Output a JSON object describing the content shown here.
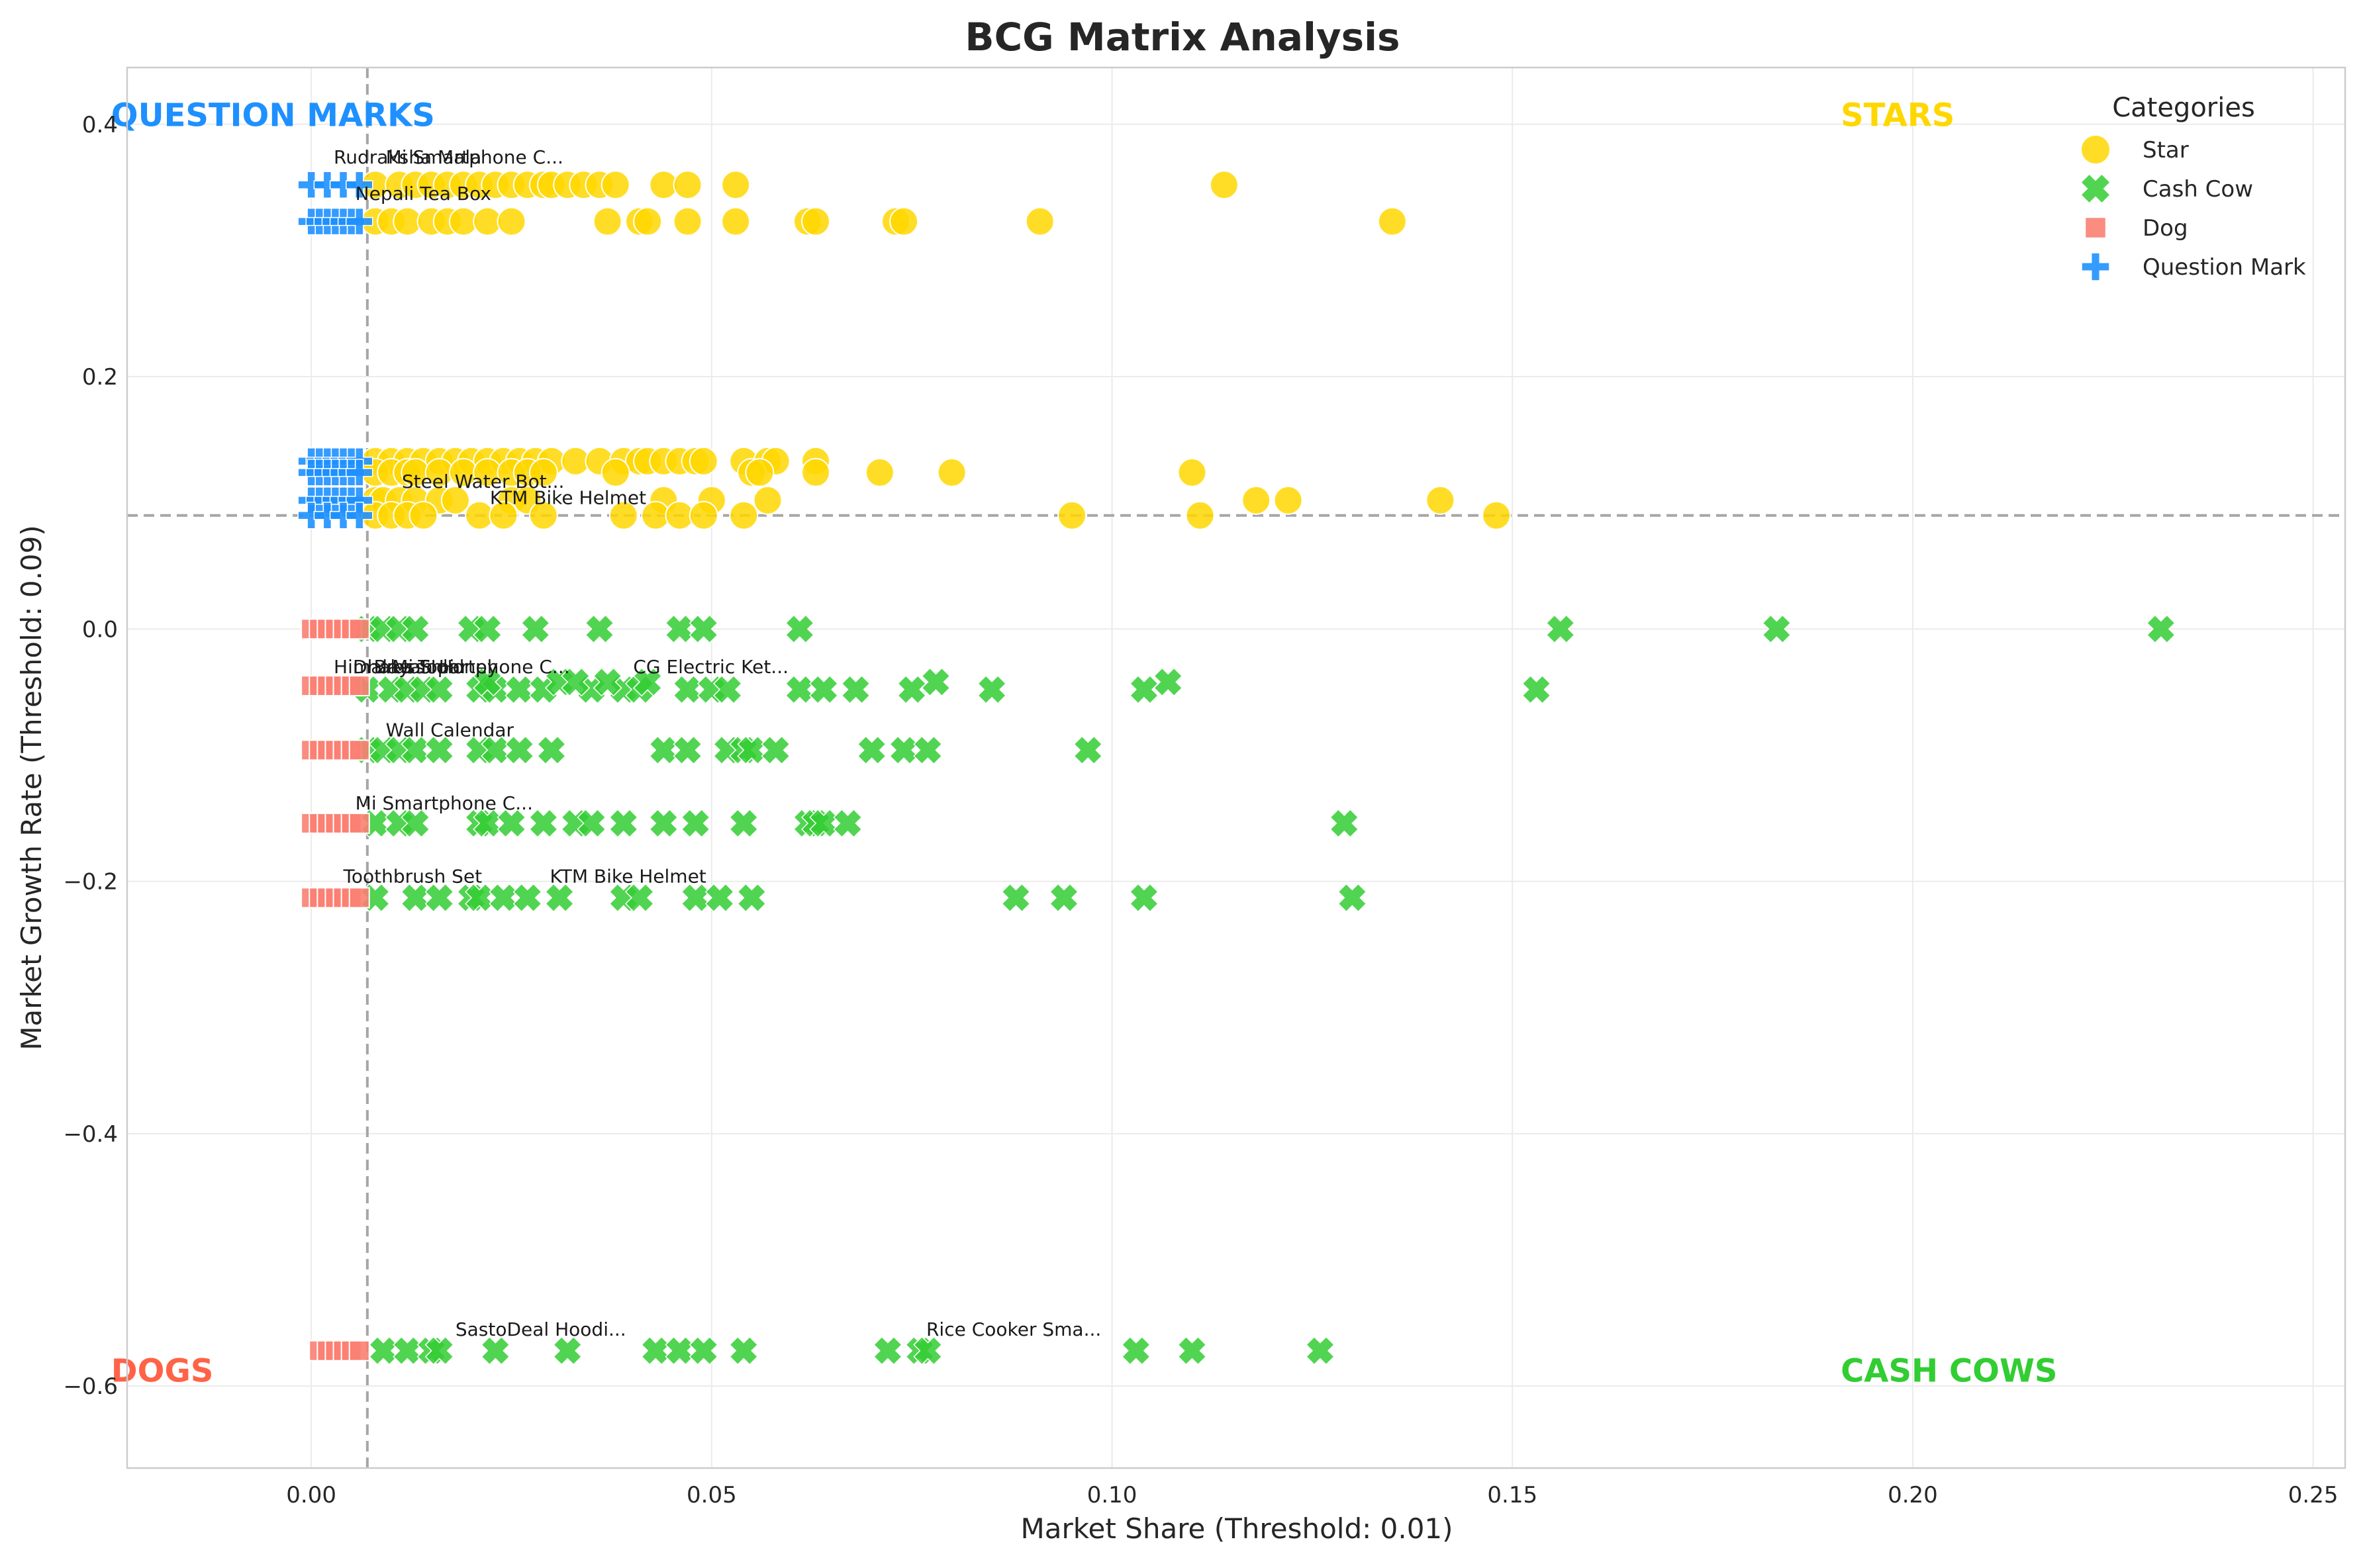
{
  "chart_data": {
    "type": "scatter",
    "title": "BCG Matrix Analysis",
    "xlabel": "Market Share (Threshold: 0.01)",
    "ylabel": "Market Growth Rate (Threshold: 0.09)",
    "xlim": [
      -0.023,
      0.254
    ],
    "ylim": [
      -0.665,
      0.445
    ],
    "x_ticks": [
      0.0,
      0.05,
      0.1,
      0.15,
      0.2,
      0.25
    ],
    "x_tick_labels": [
      "0.00",
      "0.05",
      "0.10",
      "0.15",
      "0.20",
      "0.25"
    ],
    "y_ticks": [
      -0.6,
      -0.4,
      -0.2,
      0.0,
      0.2,
      0.4
    ],
    "y_tick_labels": [
      "−0.6",
      "−0.4",
      "−0.2",
      "0.0",
      "0.2",
      "0.4"
    ],
    "grid": true,
    "thresholds": {
      "x": 0.007,
      "y": 0.09
    },
    "legend": {
      "title": "Categories",
      "placement": "top-right",
      "entries": [
        "Star",
        "Cash Cow",
        "Dog",
        "Question Mark"
      ]
    },
    "quadrant_labels": [
      {
        "text": "QUESTION MARKS",
        "x": -0.025,
        "y": 0.408,
        "color": "#1e90ff"
      },
      {
        "text": "STARS",
        "x": 0.191,
        "y": 0.408,
        "color": "#ffd700"
      },
      {
        "text": "DOGS",
        "x": -0.025,
        "y": -0.587,
        "color": "#ff6347"
      },
      {
        "text": "CASH COWS",
        "x": 0.191,
        "y": -0.587,
        "color": "#32cd32"
      }
    ],
    "series": [
      {
        "name": "Star",
        "marker": "circle",
        "color": "#ffd700",
        "rows": [
          {
            "y": 0.352,
            "x": [
              0.008,
              0.011,
              0.013,
              0.015,
              0.017,
              0.019,
              0.021,
              0.023,
              0.025,
              0.027,
              0.029,
              0.03,
              0.032,
              0.034,
              0.036,
              0.038,
              0.044,
              0.047,
              0.053,
              0.114
            ]
          },
          {
            "y": 0.323,
            "x": [
              0.008,
              0.01,
              0.012,
              0.015,
              0.017,
              0.019,
              0.022,
              0.025,
              0.037,
              0.041,
              0.042,
              0.047,
              0.053,
              0.062,
              0.063,
              0.073,
              0.074,
              0.091,
              0.135
            ]
          },
          {
            "y": 0.133,
            "x": [
              0.008,
              0.01,
              0.012,
              0.014,
              0.016,
              0.018,
              0.02,
              0.022,
              0.024,
              0.026,
              0.028,
              0.03,
              0.033,
              0.036,
              0.039,
              0.041,
              0.042,
              0.044,
              0.046,
              0.048,
              0.049,
              0.054,
              0.057,
              0.058,
              0.063
            ]
          },
          {
            "y": 0.124,
            "x": [
              0.008,
              0.01,
              0.012,
              0.013,
              0.016,
              0.019,
              0.022,
              0.025,
              0.027,
              0.029,
              0.038,
              0.055,
              0.056,
              0.063,
              0.071,
              0.08,
              0.11
            ]
          },
          {
            "y": 0.102,
            "x": [
              0.008,
              0.009,
              0.011,
              0.013,
              0.016,
              0.018,
              0.025,
              0.027,
              0.044,
              0.05,
              0.057,
              0.118,
              0.122,
              0.141
            ]
          },
          {
            "y": 0.09,
            "x": [
              0.008,
              0.01,
              0.012,
              0.014,
              0.021,
              0.024,
              0.029,
              0.039,
              0.043,
              0.046,
              0.049,
              0.054,
              0.095,
              0.111,
              0.148
            ]
          }
        ]
      },
      {
        "name": "Cash Cow",
        "marker": "x",
        "color": "#32cd32",
        "rows": [
          {
            "y": 0.0,
            "x": [
              0.007,
              0.009,
              0.011,
              0.013,
              0.02,
              0.022,
              0.028,
              0.036,
              0.046,
              0.049,
              0.061,
              0.156,
              0.183,
              0.231
            ]
          },
          {
            "y": -0.048,
            "x": [
              0.007,
              0.01,
              0.012,
              0.014,
              0.016,
              0.021,
              0.023,
              0.026,
              0.029,
              0.035,
              0.039,
              0.041,
              0.047,
              0.05,
              0.052,
              0.061,
              0.064,
              0.068,
              0.075,
              0.085,
              0.104,
              0.153
            ]
          },
          {
            "y": -0.042,
            "x": [
              0.022,
              0.031,
              0.033,
              0.037,
              0.042,
              0.078,
              0.107
            ]
          },
          {
            "y": -0.096,
            "x": [
              0.007,
              0.009,
              0.011,
              0.013,
              0.016,
              0.021,
              0.023,
              0.026,
              0.03,
              0.044,
              0.047,
              0.052,
              0.054,
              0.055,
              0.058,
              0.07,
              0.074,
              0.077,
              0.097
            ]
          },
          {
            "y": -0.154,
            "x": [
              0.008,
              0.011,
              0.013,
              0.021,
              0.022,
              0.025,
              0.029,
              0.033,
              0.035,
              0.039,
              0.044,
              0.048,
              0.054,
              0.062,
              0.063,
              0.064,
              0.067,
              0.129
            ]
          },
          {
            "y": -0.213,
            "x": [
              0.008,
              0.013,
              0.016,
              0.02,
              0.021,
              0.024,
              0.027,
              0.031,
              0.039,
              0.041,
              0.048,
              0.051,
              0.055,
              0.088,
              0.094,
              0.104,
              0.13
            ]
          },
          {
            "y": -0.572,
            "x": [
              0.009,
              0.012,
              0.015,
              0.016,
              0.023,
              0.032,
              0.043,
              0.046,
              0.049,
              0.054,
              0.072,
              0.076,
              0.077,
              0.103,
              0.11,
              0.126
            ]
          }
        ]
      },
      {
        "name": "Dog",
        "marker": "square",
        "color": "#fa8072",
        "rows": [
          {
            "y": 0.0,
            "x": [
              0.0,
              0.001,
              0.002,
              0.003,
              0.004,
              0.005,
              0.006
            ]
          },
          {
            "y": -0.045,
            "x": [
              0.0,
              0.001,
              0.002,
              0.003,
              0.004,
              0.005,
              0.006
            ]
          },
          {
            "y": -0.096,
            "x": [
              0.0,
              0.001,
              0.002,
              0.003,
              0.004,
              0.005,
              0.006
            ]
          },
          {
            "y": -0.154,
            "x": [
              0.0,
              0.001,
              0.002,
              0.003,
              0.004,
              0.005,
              0.006
            ]
          },
          {
            "y": -0.213,
            "x": [
              0.0,
              0.001,
              0.002,
              0.003,
              0.004,
              0.005,
              0.006
            ]
          },
          {
            "y": -0.572,
            "x": [
              0.001,
              0.002,
              0.003,
              0.004,
              0.005,
              0.006
            ]
          }
        ]
      },
      {
        "name": "Question Mark",
        "marker": "plus",
        "color": "#1e90ff",
        "rows": [
          {
            "y": 0.352,
            "x": [
              0.0,
              0.002,
              0.004,
              0.006
            ]
          },
          {
            "y": 0.323,
            "x": [
              0.0,
              0.001,
              0.002,
              0.003,
              0.004,
              0.005,
              0.006
            ]
          },
          {
            "y": 0.133,
            "x": [
              0.0,
              0.001,
              0.002,
              0.003,
              0.004,
              0.005,
              0.006
            ]
          },
          {
            "y": 0.124,
            "x": [
              0.0,
              0.001,
              0.002,
              0.003,
              0.004,
              0.005,
              0.006
            ]
          },
          {
            "y": 0.102,
            "x": [
              0.0,
              0.001,
              0.002,
              0.003,
              0.004,
              0.005,
              0.006
            ]
          },
          {
            "y": 0.09,
            "x": [
              0.0,
              0.002,
              0.004,
              0.006
            ]
          }
        ]
      }
    ],
    "annotations": [
      {
        "text": "Rudraksha Mala",
        "x": 0.0028,
        "y": 0.369
      },
      {
        "text": "Mi Smartphone C...",
        "x": 0.0093,
        "y": 0.369
      },
      {
        "text": "Nepali Tea Box",
        "x": 0.0055,
        "y": 0.34
      },
      {
        "text": "Steel Water Bot...",
        "x": 0.0113,
        "y": 0.112
      },
      {
        "text": "KTM Bike Helmet",
        "x": 0.0223,
        "y": 0.099
      },
      {
        "text": "Himalayan Honey",
        "x": 0.0028,
        "y": -0.035
      },
      {
        "text": "Dhaka Topi",
        "x": 0.0052,
        "y": -0.035
      },
      {
        "text": "Brass Idol",
        "x": 0.0078,
        "y": -0.035
      },
      {
        "text": "Mi Smartphone C...",
        "x": 0.0101,
        "y": -0.035
      },
      {
        "text": "CG Electric Ket...",
        "x": 0.0402,
        "y": -0.035
      },
      {
        "text": "Wall Calendar",
        "x": 0.0093,
        "y": -0.085
      },
      {
        "text": "Mi Smartphone C...",
        "x": 0.0055,
        "y": -0.143
      },
      {
        "text": "Toothbrush Set",
        "x": 0.004,
        "y": -0.201
      },
      {
        "text": "KTM Bike Helmet",
        "x": 0.0298,
        "y": -0.201
      },
      {
        "text": "SastoDeal Hoodi...",
        "x": 0.018,
        "y": -0.56
      },
      {
        "text": "Rice Cooker Sma...",
        "x": 0.0768,
        "y": -0.56
      }
    ]
  }
}
